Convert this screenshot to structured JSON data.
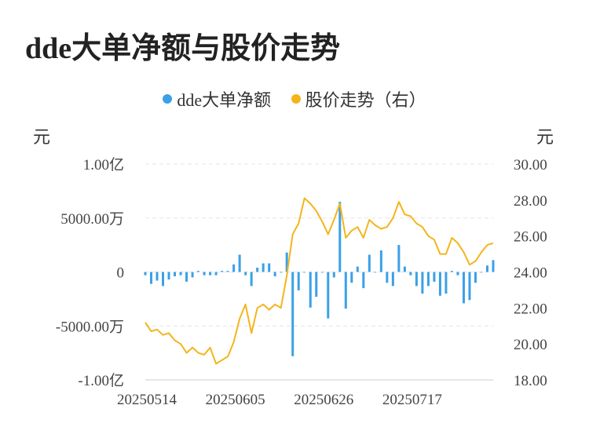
{
  "title": "dde大单净额与股价走势",
  "legend": {
    "items": [
      {
        "label": "dde大单净额",
        "color": "#3aa0e8"
      },
      {
        "label": "股价走势（右）",
        "color": "#f3b51b"
      }
    ]
  },
  "units": {
    "left": "元",
    "right": "元"
  },
  "chart_data": {
    "type": "bar+line",
    "x_tick_labels": [
      "20250514",
      "20250605",
      "20250626",
      "20250717"
    ],
    "x_tick_indices": [
      0,
      15,
      30,
      45
    ],
    "y_left": {
      "min": -1.0,
      "max": 1.0,
      "ticks": [
        1.0,
        0.5,
        0,
        -0.5,
        -1.0
      ],
      "tick_labels": [
        "1.00亿",
        "5000.00万",
        "0",
        "-5000.00万",
        "-1.00亿"
      ],
      "unit": "亿元"
    },
    "y_right": {
      "min": 18,
      "max": 30,
      "ticks": [
        30,
        28,
        26,
        24,
        22,
        20,
        18
      ],
      "tick_labels": [
        "30.00",
        "28.00",
        "26.00",
        "24.00",
        "22.00",
        "20.00",
        "18.00"
      ]
    },
    "grid": true,
    "series": [
      {
        "name": "dde大单净额",
        "kind": "bar",
        "axis": "left",
        "color": "#3aa0e8",
        "values": [
          -0.03,
          -0.11,
          -0.08,
          -0.13,
          -0.07,
          -0.04,
          -0.03,
          -0.09,
          -0.05,
          0.01,
          -0.03,
          -0.03,
          -0.03,
          0.01,
          0.01,
          0.07,
          0.16,
          -0.03,
          -0.13,
          0.04,
          0.08,
          0.08,
          -0.04,
          0.0,
          0.18,
          -0.78,
          -0.17,
          0.0,
          -0.33,
          -0.23,
          0.0,
          -0.43,
          -0.05,
          0.65,
          -0.34,
          -0.1,
          0.05,
          -0.15,
          0.16,
          0.0,
          0.2,
          -0.1,
          -0.13,
          0.25,
          0.05,
          -0.03,
          -0.13,
          -0.2,
          -0.13,
          -0.09,
          -0.22,
          -0.2,
          0.01,
          -0.03,
          -0.29,
          -0.26,
          -0.1,
          0.0,
          0.06,
          0.11
        ]
      },
      {
        "name": "股价走势（右）",
        "kind": "line",
        "axis": "right",
        "color": "#f3b51b",
        "values": [
          21.2,
          20.7,
          20.8,
          20.5,
          20.6,
          20.2,
          20.0,
          19.5,
          19.8,
          19.5,
          19.4,
          19.8,
          18.9,
          19.1,
          19.3,
          20.1,
          21.4,
          22.2,
          20.6,
          22.0,
          22.2,
          21.9,
          22.2,
          22.0,
          23.8,
          26.1,
          26.7,
          28.1,
          27.8,
          27.4,
          26.8,
          26.1,
          26.9,
          27.8,
          25.9,
          26.3,
          26.5,
          25.9,
          26.9,
          26.6,
          26.4,
          26.5,
          27.0,
          27.9,
          27.2,
          27.1,
          26.7,
          26.5,
          26.0,
          25.8,
          25.0,
          25.0,
          25.9,
          25.6,
          25.1,
          24.4,
          24.6,
          25.1,
          25.5,
          25.6
        ]
      }
    ]
  }
}
